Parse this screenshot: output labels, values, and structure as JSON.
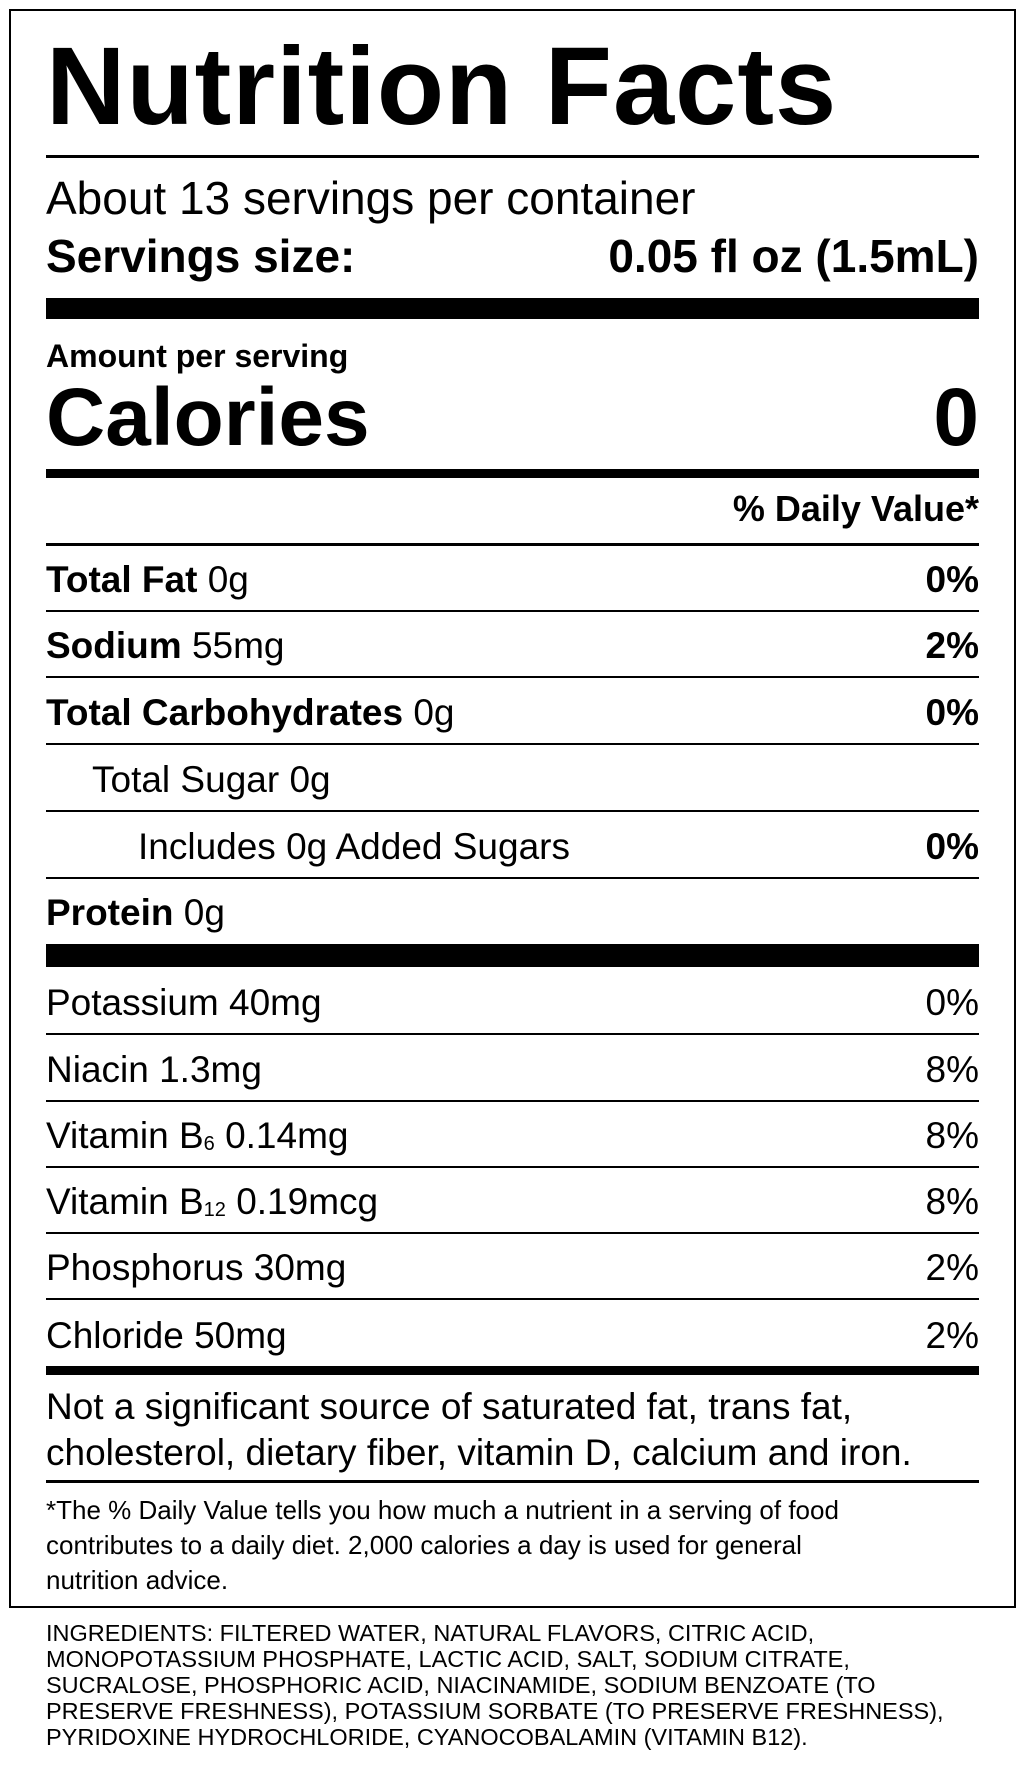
{
  "header": {
    "title": "Nutrition Facts",
    "servings_per_container": "About 13 servings per container",
    "serving_size_label": "Servings size:",
    "serving_size_value": "0.05 fl oz (1.5mL)"
  },
  "calories": {
    "label": "Amount per serving",
    "name": "Calories",
    "value": "0"
  },
  "daily_value_header": "% Daily Value*",
  "nutrients": [
    {
      "name": "Total Fat",
      "amount": "0g",
      "dv": "0%"
    },
    {
      "name": "Sodium",
      "amount": "55mg",
      "dv": "2%"
    },
    {
      "name": "Total Carbohydrates",
      "amount": "0g",
      "dv": "0%"
    },
    {
      "name": "Total Sugar 0g"
    },
    {
      "name": "Includes 0g Added Sugars",
      "dv": "0%"
    },
    {
      "name": "Protein",
      "amount": "0g"
    }
  ],
  "vitamins_minerals": [
    {
      "name": "Potassium 40mg",
      "dv": "0%"
    },
    {
      "name": "Niacin 1.3mg",
      "dv": "8%"
    },
    {
      "name": "Vitamin B",
      "sub": "6",
      "amount": "0.14mg",
      "dv": "8%"
    },
    {
      "name": "Vitamin B",
      "sub": "12",
      "amount": "0.19mcg",
      "dv": "8%"
    },
    {
      "name": "Phosphorus 30mg",
      "dv": "2%"
    },
    {
      "name": "Chloride 50mg",
      "dv": "2%"
    }
  ],
  "not_significant": [
    "Not a significant source of saturated fat, trans fat,",
    "cholesterol, dietary fiber, vitamin D, calcium and iron."
  ],
  "footnote": [
    "*The % Daily Value tells you how much a nutrient in a serving of food",
    "contributes to a daily diet. 2,000 calories a day is used for general",
    "nutrition advice."
  ],
  "ingredients": [
    "INGREDIENTS: FILTERED WATER, NATURAL FLAVORS, CITRIC ACID,",
    "MONOPOTASSIUM PHOSPHATE, LACTIC ACID, SALT, SODIUM CITRATE,",
    "SUCRALOSE, PHOSPHORIC ACID, NIACINAMIDE, SODIUM BENZOATE (TO",
    "PRESERVE FRESHNESS), POTASSIUM SORBATE (TO PRESERVE FRESHNESS),",
    "PYRIDOXINE HYDROCHLORIDE, CYANOCOBALAMIN (VITAMIN B12)."
  ]
}
